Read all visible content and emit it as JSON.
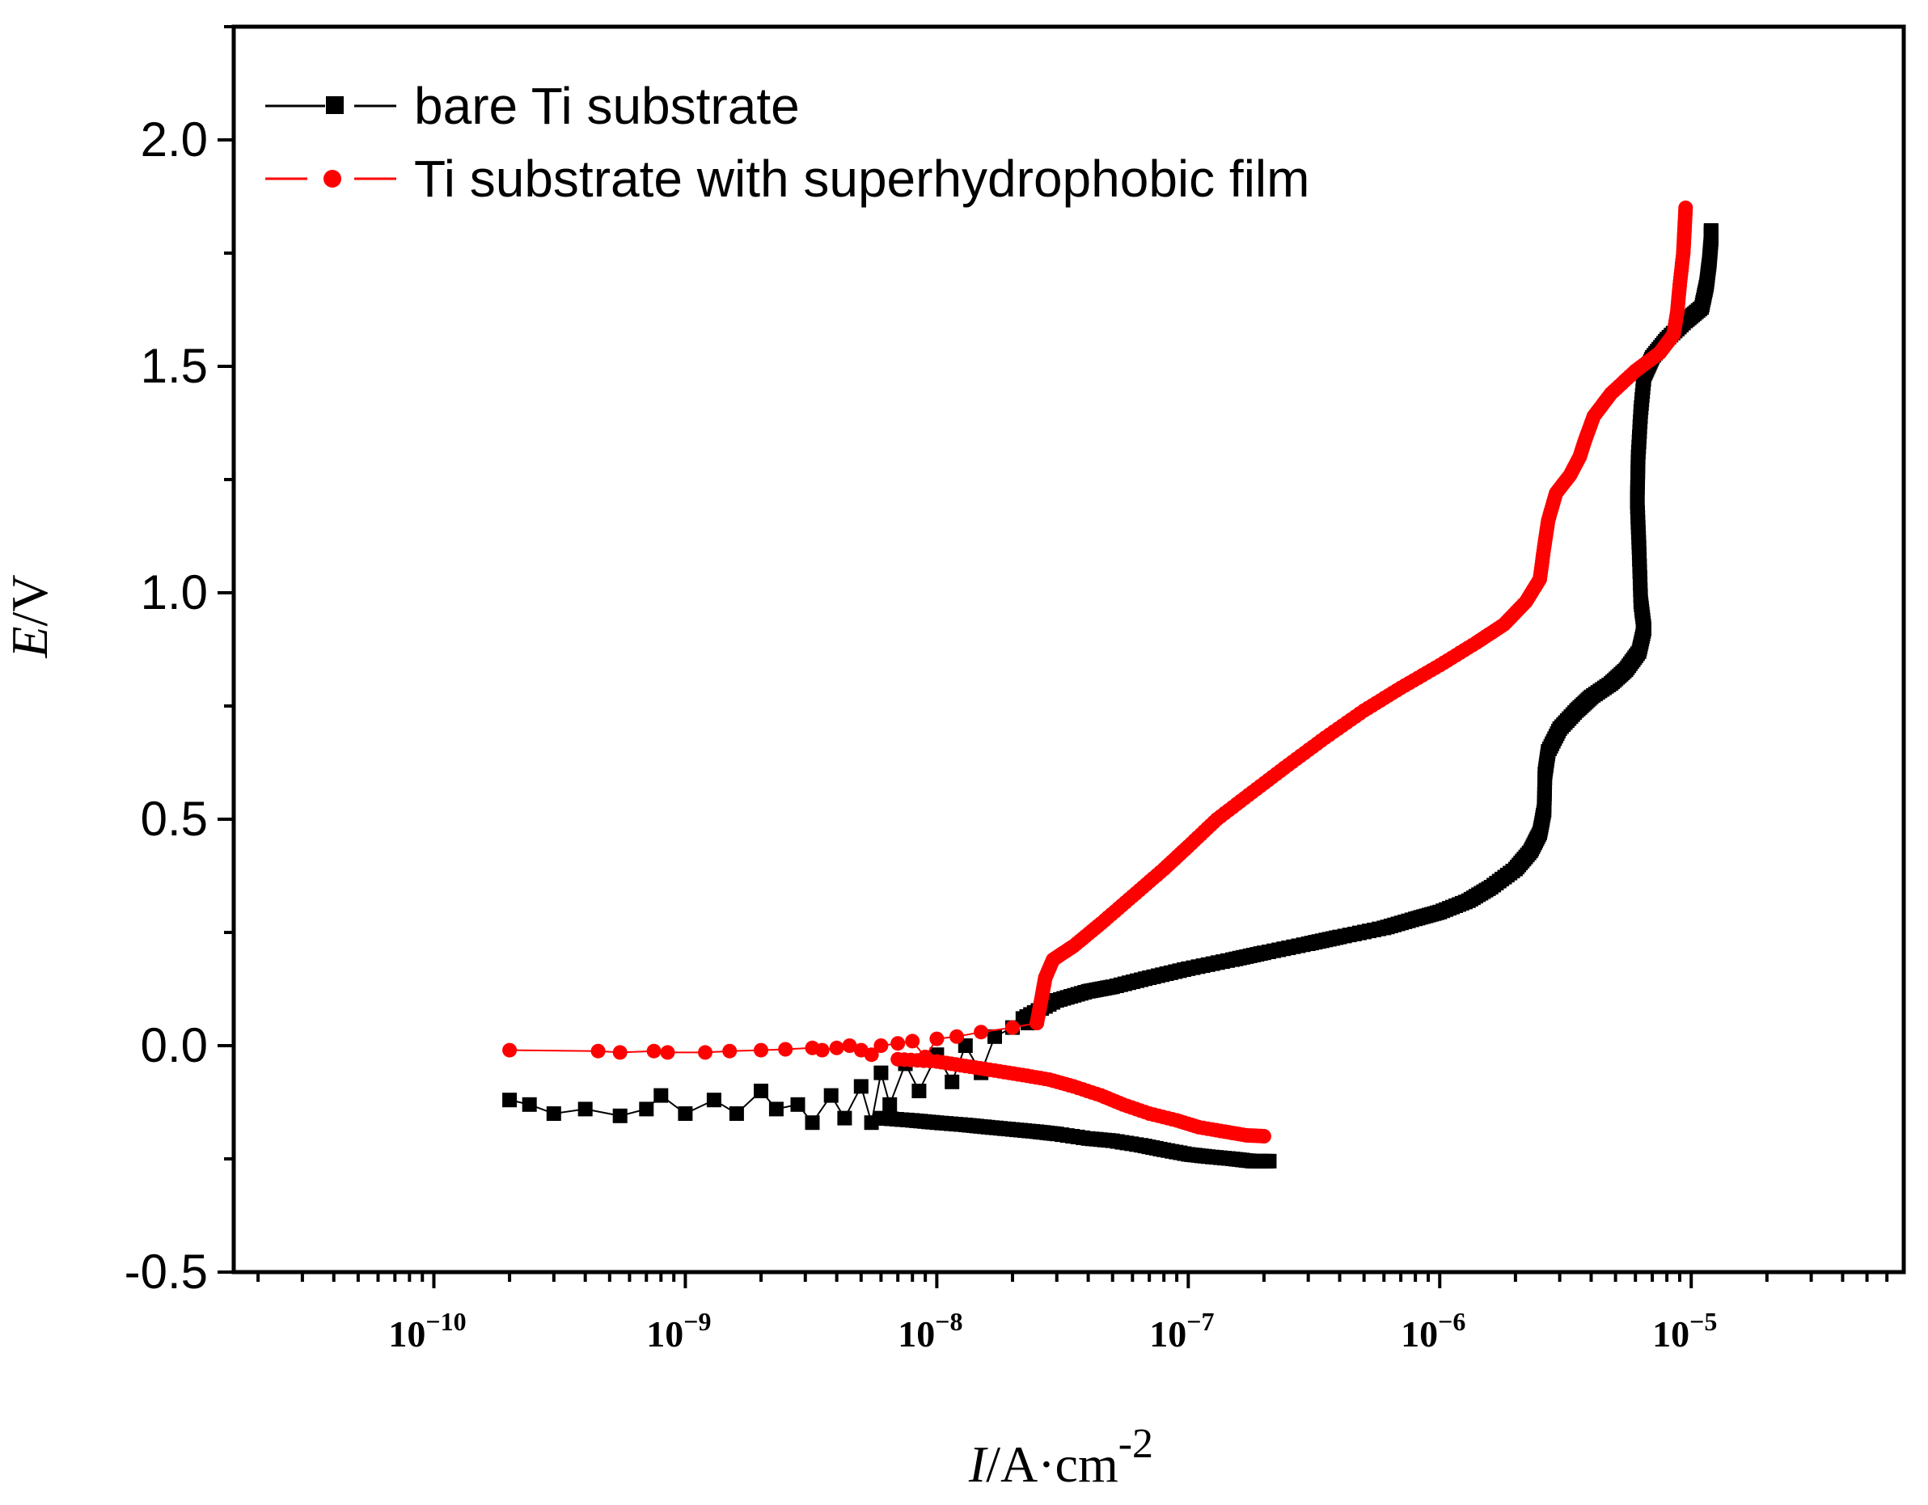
{
  "chart_data": {
    "type": "scatter",
    "title": "",
    "xlabel": {
      "var": "I",
      "unit": "/A·cm",
      "exp": "-2"
    },
    "ylabel": {
      "var": "E",
      "unit": "/V"
    },
    "x_scale": "log",
    "xlim": [
      1.6e-11,
      7e-05
    ],
    "ylim": [
      -0.5,
      2.25
    ],
    "x_ticks": [
      {
        "value": 1e-10,
        "base": "10",
        "exp": "−10"
      },
      {
        "value": 1e-09,
        "base": "10",
        "exp": "−9"
      },
      {
        "value": 1e-08,
        "base": "10",
        "exp": "−8"
      },
      {
        "value": 1e-07,
        "base": "10",
        "exp": "−7"
      },
      {
        "value": 1e-06,
        "base": "10",
        "exp": "−6"
      },
      {
        "value": 1e-05,
        "base": "10",
        "exp": "−5"
      }
    ],
    "y_ticks": [
      {
        "value": -0.5,
        "label": "-0.5"
      },
      {
        "value": 0.0,
        "label": "0.0"
      },
      {
        "value": 0.5,
        "label": "0.5"
      },
      {
        "value": 1.0,
        "label": "1.0"
      },
      {
        "value": 1.5,
        "label": "1.5"
      },
      {
        "value": 2.0,
        "label": "2.0"
      }
    ],
    "y_minor_step": 0.25,
    "grid": false,
    "legend_position": "top-left",
    "series": [
      {
        "name": "bare Ti substrate",
        "color": "#000000",
        "marker": "square",
        "scatter_points": [
          [
            2e-10,
            -0.12
          ],
          [
            2.4e-10,
            -0.13
          ],
          [
            3e-10,
            -0.15
          ],
          [
            4e-10,
            -0.14
          ],
          [
            5.5e-10,
            -0.155
          ],
          [
            7e-10,
            -0.14
          ],
          [
            8e-10,
            -0.11
          ],
          [
            1e-09,
            -0.15
          ],
          [
            1.3e-09,
            -0.12
          ],
          [
            1.6e-09,
            -0.15
          ],
          [
            2e-09,
            -0.1
          ],
          [
            2.3e-09,
            -0.14
          ],
          [
            2.8e-09,
            -0.13
          ],
          [
            3.2e-09,
            -0.17
          ],
          [
            3.8e-09,
            -0.11
          ],
          [
            4.3e-09,
            -0.16
          ],
          [
            5e-09,
            -0.09
          ],
          [
            5.5e-09,
            -0.17
          ],
          [
            6e-09,
            -0.06
          ],
          [
            6.5e-09,
            -0.13
          ],
          [
            7.5e-09,
            -0.04
          ],
          [
            8.5e-09,
            -0.1
          ],
          [
            1e-08,
            -0.02
          ],
          [
            1.15e-08,
            -0.08
          ],
          [
            1.3e-08,
            0.0
          ],
          [
            1.5e-08,
            -0.06
          ],
          [
            1.7e-08,
            0.02
          ],
          [
            2e-08,
            0.04
          ],
          [
            2.3e-08,
            0.05
          ]
        ],
        "cathodic": [
          [
            2.1e-07,
            -0.255
          ],
          [
            1.8e-07,
            -0.255
          ],
          [
            1.5e-07,
            -0.25
          ],
          [
            1.2e-07,
            -0.245
          ],
          [
            1e-07,
            -0.24
          ],
          [
            8e-08,
            -0.23
          ],
          [
            6.5e-08,
            -0.22
          ],
          [
            5e-08,
            -0.21
          ],
          [
            4e-08,
            -0.205
          ],
          [
            3e-08,
            -0.195
          ],
          [
            2.5e-08,
            -0.19
          ],
          [
            2e-08,
            -0.185
          ],
          [
            1.6e-08,
            -0.18
          ],
          [
            1.3e-08,
            -0.175
          ],
          [
            1e-08,
            -0.17
          ],
          [
            8e-09,
            -0.165
          ],
          [
            6e-09,
            -0.16
          ]
        ],
        "anodic": [
          [
            2.2e-08,
            0.06
          ],
          [
            3e-08,
            0.1
          ],
          [
            4e-08,
            0.12
          ],
          [
            5e-08,
            0.13
          ],
          [
            7e-08,
            0.15
          ],
          [
            1e-07,
            0.17
          ],
          [
            1.5e-07,
            0.19
          ],
          [
            2e-07,
            0.205
          ],
          [
            3e-07,
            0.225
          ],
          [
            4e-07,
            0.24
          ],
          [
            6e-07,
            0.26
          ],
          [
            8e-07,
            0.28
          ],
          [
            1e-06,
            0.295
          ],
          [
            1.3e-06,
            0.32
          ],
          [
            1.6e-06,
            0.35
          ],
          [
            2e-06,
            0.39
          ],
          [
            2.3e-06,
            0.43
          ],
          [
            2.5e-06,
            0.47
          ],
          [
            2.6e-06,
            0.52
          ],
          [
            2.62e-06,
            0.6
          ],
          [
            2.7e-06,
            0.65
          ],
          [
            3e-06,
            0.7
          ],
          [
            3.5e-06,
            0.74
          ],
          [
            4e-06,
            0.77
          ],
          [
            4.8e-06,
            0.8
          ],
          [
            5.5e-06,
            0.83
          ],
          [
            6.2e-06,
            0.87
          ],
          [
            6.5e-06,
            0.92
          ],
          [
            6.3e-06,
            0.98
          ],
          [
            6.2e-06,
            1.1
          ],
          [
            6.1e-06,
            1.2
          ],
          [
            6.15e-06,
            1.3
          ],
          [
            6.3e-06,
            1.4
          ],
          [
            6.5e-06,
            1.48
          ],
          [
            7e-06,
            1.52
          ],
          [
            8e-06,
            1.56
          ],
          [
            9.5e-06,
            1.6
          ],
          [
            1.1e-05,
            1.63
          ],
          [
            1.15e-05,
            1.68
          ],
          [
            1.18e-05,
            1.73
          ],
          [
            1.2e-05,
            1.78
          ],
          [
            1.2e-05,
            1.8
          ]
        ]
      },
      {
        "name": "Ti substrate with superhydrophobic film",
        "color": "#ff0000",
        "marker": "circle",
        "scatter_points": [
          [
            2e-10,
            -0.01
          ],
          [
            4.5e-10,
            -0.012
          ],
          [
            5.5e-10,
            -0.015
          ],
          [
            7.5e-10,
            -0.012
          ],
          [
            8.5e-10,
            -0.015
          ],
          [
            1.2e-09,
            -0.015
          ],
          [
            1.5e-09,
            -0.012
          ],
          [
            2e-09,
            -0.01
          ],
          [
            2.5e-09,
            -0.008
          ],
          [
            3.2e-09,
            -0.005
          ],
          [
            3.5e-09,
            -0.01
          ],
          [
            4e-09,
            -0.005
          ],
          [
            4.5e-09,
            0.0
          ],
          [
            5e-09,
            -0.01
          ],
          [
            5.5e-09,
            -0.02
          ],
          [
            6e-09,
            0.0
          ],
          [
            7e-09,
            0.005
          ],
          [
            8e-09,
            0.01
          ],
          [
            9e-09,
            -0.025
          ],
          [
            1e-08,
            0.015
          ],
          [
            1.2e-08,
            0.02
          ],
          [
            1.5e-08,
            0.03
          ],
          [
            2e-08,
            0.04
          ],
          [
            2.5e-08,
            0.05
          ]
        ],
        "cathodic": [
          [
            2e-07,
            -0.2
          ],
          [
            1.7e-07,
            -0.198
          ],
          [
            1.4e-07,
            -0.19
          ],
          [
            1.1e-07,
            -0.18
          ],
          [
            9e-08,
            -0.165
          ],
          [
            7e-08,
            -0.15
          ],
          [
            5.5e-08,
            -0.13
          ],
          [
            4.5e-08,
            -0.11
          ],
          [
            3.5e-08,
            -0.09
          ],
          [
            2.8e-08,
            -0.075
          ],
          [
            2.2e-08,
            -0.065
          ],
          [
            1.7e-08,
            -0.055
          ],
          [
            1.3e-08,
            -0.045
          ],
          [
            1e-08,
            -0.035
          ],
          [
            7e-09,
            -0.03
          ]
        ],
        "anodic": [
          [
            2.5e-08,
            0.05
          ],
          [
            2.6e-08,
            0.1
          ],
          [
            2.7e-08,
            0.15
          ],
          [
            2.9e-08,
            0.19
          ],
          [
            3.5e-08,
            0.22
          ],
          [
            4.5e-08,
            0.27
          ],
          [
            6e-08,
            0.33
          ],
          [
            8e-08,
            0.39
          ],
          [
            1e-07,
            0.44
          ],
          [
            1.3e-07,
            0.5
          ],
          [
            1.8e-07,
            0.56
          ],
          [
            2.5e-07,
            0.62
          ],
          [
            3.5e-07,
            0.68
          ],
          [
            5e-07,
            0.74
          ],
          [
            7e-07,
            0.79
          ],
          [
            1e-06,
            0.84
          ],
          [
            1.4e-06,
            0.89
          ],
          [
            1.8e-06,
            0.93
          ],
          [
            2.2e-06,
            0.98
          ],
          [
            2.5e-06,
            1.03
          ],
          [
            2.6e-06,
            1.1
          ],
          [
            2.7e-06,
            1.16
          ],
          [
            2.9e-06,
            1.22
          ],
          [
            3.3e-06,
            1.26
          ],
          [
            3.6e-06,
            1.3
          ],
          [
            3.8e-06,
            1.34
          ],
          [
            4.1e-06,
            1.39
          ],
          [
            4.8e-06,
            1.44
          ],
          [
            6e-06,
            1.49
          ],
          [
            7.5e-06,
            1.53
          ],
          [
            8.5e-06,
            1.57
          ],
          [
            8.8e-06,
            1.62
          ],
          [
            9e-06,
            1.68
          ],
          [
            9.3e-06,
            1.75
          ],
          [
            9.4e-06,
            1.8
          ],
          [
            9.5e-06,
            1.85
          ]
        ]
      }
    ]
  }
}
